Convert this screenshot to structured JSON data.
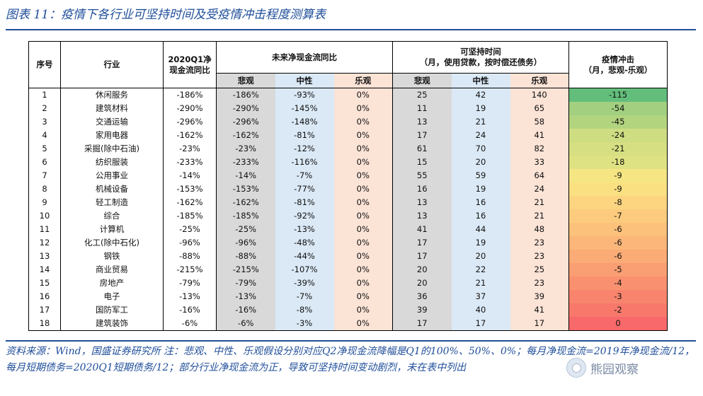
{
  "title": "图表 11：疫情下各行业可坚持时间及受疫情冲击程度测算表",
  "headers": {
    "seq": "序号",
    "industry": "行业",
    "q1": "2020Q1净现金流同比",
    "future_cf": "未来净现金流同比",
    "hold_line1": "可坚持时间",
    "hold_line2": "（月，使用贷款，按时偿还债务）",
    "impact_line1": "疫情冲击",
    "impact_line2": "（月，悲观-乐观）",
    "pessimistic": "悲观",
    "neutral": "中性",
    "optimistic": "乐观"
  },
  "rows": [
    {
      "seq": "1",
      "industry": "休闲服务",
      "q1": "-186%",
      "cf_p": "-186%",
      "cf_n": "-93%",
      "cf_o": "0%",
      "h_p": "25",
      "h_n": "42",
      "h_o": "140",
      "impact": "-115",
      "impact_color": "#63be7b"
    },
    {
      "seq": "2",
      "industry": "建筑材料",
      "q1": "-290%",
      "cf_p": "-290%",
      "cf_n": "-145%",
      "cf_o": "0%",
      "h_p": "11",
      "h_n": "19",
      "h_o": "65",
      "impact": "-54",
      "impact_color": "#a3d080"
    },
    {
      "seq": "3",
      "industry": "交通运输",
      "q1": "-296%",
      "cf_p": "-296%",
      "cf_n": "-148%",
      "cf_o": "0%",
      "h_p": "13",
      "h_n": "21",
      "h_o": "58",
      "impact": "-45",
      "impact_color": "#b2d47f"
    },
    {
      "seq": "4",
      "industry": "家用电器",
      "q1": "-162%",
      "cf_p": "-162%",
      "cf_n": "-81%",
      "cf_o": "0%",
      "h_p": "17",
      "h_n": "24",
      "h_o": "41",
      "impact": "-24",
      "impact_color": "#cfdd82"
    },
    {
      "seq": "5",
      "industry": "采掘(除中石油)",
      "q1": "-23%",
      "cf_p": "-23%",
      "cf_n": "-12%",
      "cf_o": "0%",
      "h_p": "61",
      "h_n": "70",
      "h_o": "82",
      "impact": "-21",
      "impact_color": "#d6df82"
    },
    {
      "seq": "6",
      "industry": "纺织服装",
      "q1": "-233%",
      "cf_p": "-233%",
      "cf_n": "-116%",
      "cf_o": "0%",
      "h_p": "15",
      "h_n": "20",
      "h_o": "33",
      "impact": "-18",
      "impact_color": "#dfe283"
    },
    {
      "seq": "7",
      "industry": "公用事业",
      "q1": "-14%",
      "cf_p": "-14%",
      "cf_n": "-7%",
      "cf_o": "0%",
      "h_p": "55",
      "h_n": "59",
      "h_o": "64",
      "impact": "-9",
      "impact_color": "#f6e683"
    },
    {
      "seq": "8",
      "industry": "机械设备",
      "q1": "-153%",
      "cf_p": "-153%",
      "cf_n": "-77%",
      "cf_o": "0%",
      "h_p": "16",
      "h_n": "19",
      "h_o": "24",
      "impact": "-9",
      "impact_color": "#fbe082"
    },
    {
      "seq": "9",
      "industry": "轻工制造",
      "q1": "-162%",
      "cf_p": "-162%",
      "cf_n": "-81%",
      "cf_o": "0%",
      "h_p": "13",
      "h_n": "16",
      "h_o": "21",
      "impact": "-8",
      "impact_color": "#fdd580"
    },
    {
      "seq": "10",
      "industry": "综合",
      "q1": "-185%",
      "cf_p": "-185%",
      "cf_n": "-92%",
      "cf_o": "0%",
      "h_p": "13",
      "h_n": "16",
      "h_o": "21",
      "impact": "-7",
      "impact_color": "#fdcb7d"
    },
    {
      "seq": "11",
      "industry": "计算机",
      "q1": "-25%",
      "cf_p": "-25%",
      "cf_n": "-13%",
      "cf_o": "0%",
      "h_p": "41",
      "h_n": "44",
      "h_o": "48",
      "impact": "-6",
      "impact_color": "#fcc17b"
    },
    {
      "seq": "12",
      "industry": "化工(除中石化)",
      "q1": "-96%",
      "cf_p": "-96%",
      "cf_n": "-48%",
      "cf_o": "0%",
      "h_p": "17",
      "h_n": "19",
      "h_o": "23",
      "impact": "-6",
      "impact_color": "#fcb679"
    },
    {
      "seq": "13",
      "industry": "钢铁",
      "q1": "-88%",
      "cf_p": "-88%",
      "cf_n": "-44%",
      "cf_o": "0%",
      "h_p": "17",
      "h_n": "20",
      "h_o": "23",
      "impact": "-6",
      "impact_color": "#fbab76"
    },
    {
      "seq": "14",
      "industry": "商业贸易",
      "q1": "-215%",
      "cf_p": "-215%",
      "cf_n": "-107%",
      "cf_o": "0%",
      "h_p": "20",
      "h_n": "22",
      "h_o": "25",
      "impact": "-5",
      "impact_color": "#fa9e73"
    },
    {
      "seq": "15",
      "industry": "房地产",
      "q1": "-79%",
      "cf_p": "-79%",
      "cf_n": "-39%",
      "cf_o": "0%",
      "h_p": "20",
      "h_n": "21",
      "h_o": "23",
      "impact": "-4",
      "impact_color": "#f99170"
    },
    {
      "seq": "16",
      "industry": "电子",
      "q1": "-13%",
      "cf_p": "-13%",
      "cf_n": "-7%",
      "cf_o": "0%",
      "h_p": "36",
      "h_n": "37",
      "h_o": "39",
      "impact": "-3",
      "impact_color": "#f8846d"
    },
    {
      "seq": "17",
      "industry": "国防军工",
      "q1": "-16%",
      "cf_p": "-16%",
      "cf_n": "-8%",
      "cf_o": "0%",
      "h_p": "39",
      "h_n": "40",
      "h_o": "41",
      "impact": "-2",
      "impact_color": "#f8796b"
    },
    {
      "seq": "18",
      "industry": "建筑装饰",
      "q1": "-6%",
      "cf_p": "-6%",
      "cf_n": "-3%",
      "cf_o": "0%",
      "h_p": "17",
      "h_n": "17",
      "h_o": "17",
      "impact": "0",
      "impact_color": "#f8696b"
    }
  ],
  "note": "资料来源：Wind，国盛证券研究所 注：悲观、中性、乐观假设分别对应Q2净现金流降幅是Q1的100%、50%、0%；每月净现金流=2019年净现金流/12，每月短期债务=2020Q1短期债务/12；部分行业净现金流为正，导致可坚持时间变动剧烈，未在表中列出",
  "watermark": "熊园观察"
}
